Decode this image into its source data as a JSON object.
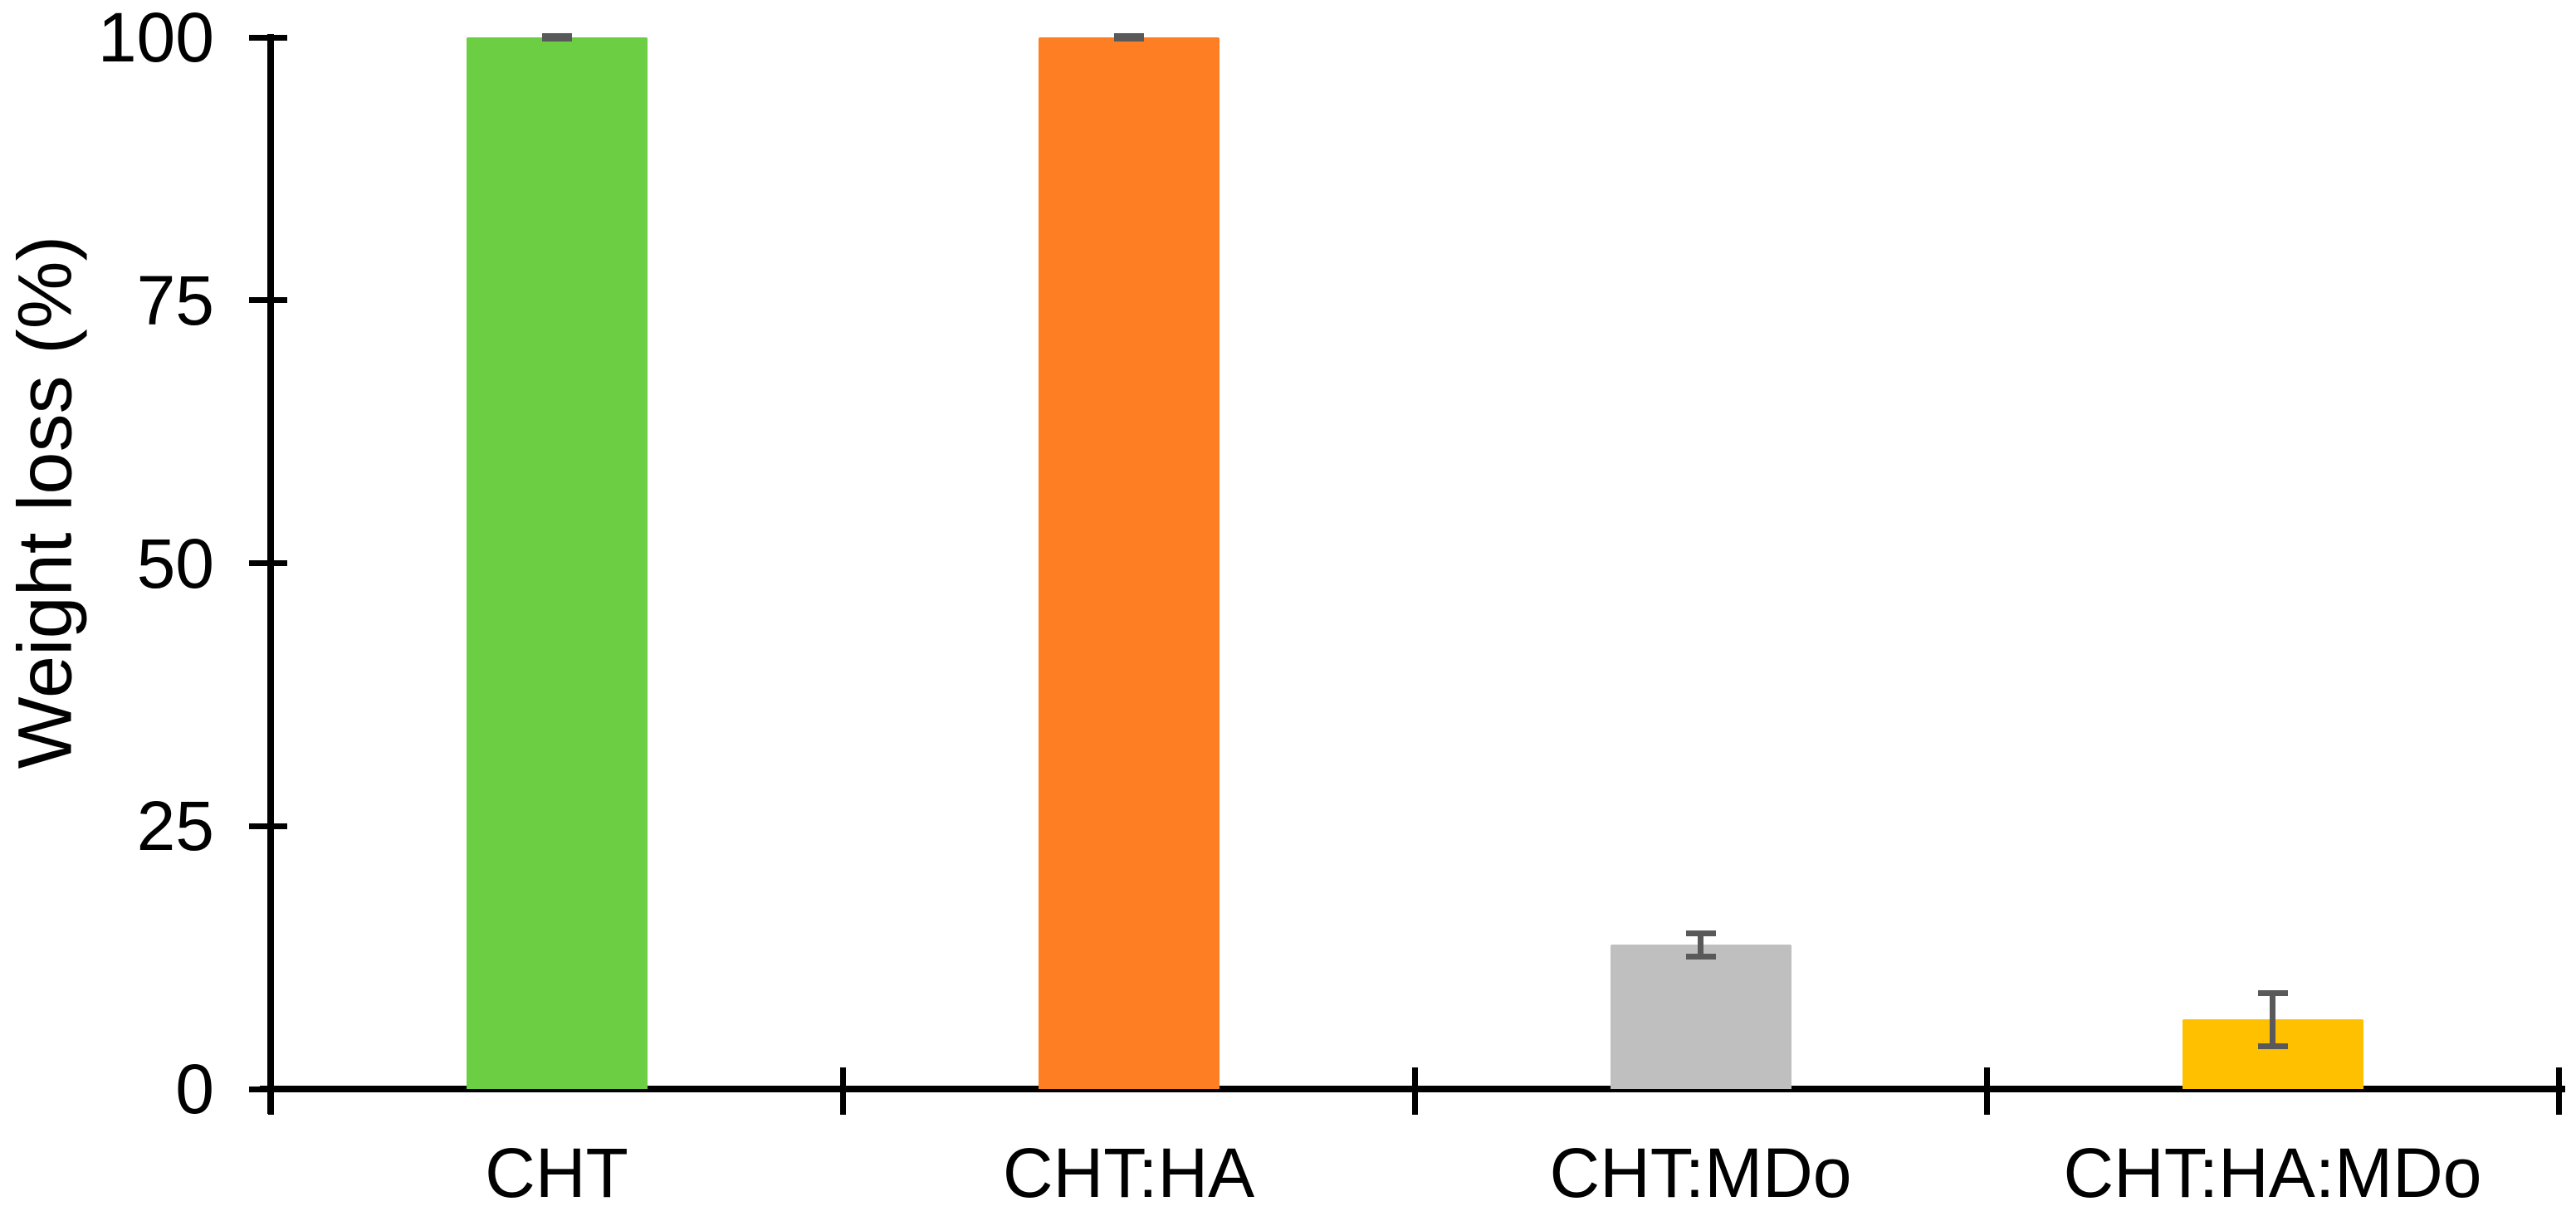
{
  "chart_data": {
    "type": "bar",
    "ylabel": "Weight loss (%)",
    "categories": [
      "CHT",
      "CHT:HA",
      "CHT:MDo",
      "CHT:HA:MDo"
    ],
    "values": [
      100,
      100,
      13.7,
      6.6
    ],
    "error_bars": [
      0.4,
      0.4,
      1.4,
      2.8
    ],
    "bar_colors": [
      "#6CCE42",
      "#FD7E23",
      "#BFBFBF",
      "#FFC000"
    ],
    "error_bar_color": "#595959",
    "axis_color": "#000000",
    "ylim": [
      0,
      100
    ],
    "yticks": [
      0,
      25,
      50,
      75,
      100
    ],
    "grid": false,
    "legend": null
  }
}
